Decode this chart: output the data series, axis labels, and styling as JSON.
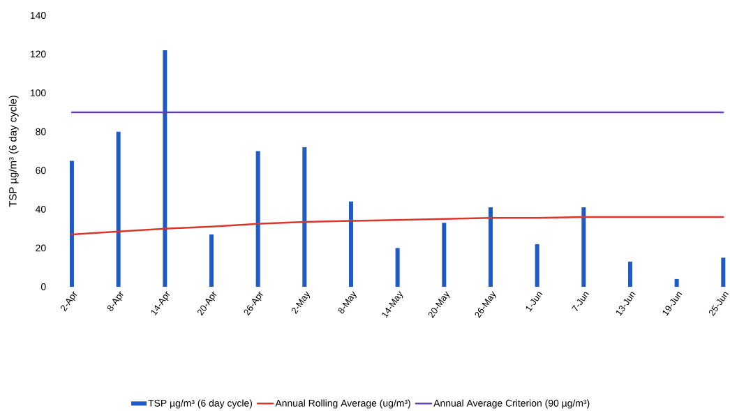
{
  "chart_data": {
    "type": "bar",
    "ylabel": "TSP µg/m³ (6 day cycle)",
    "categories": [
      "2-Apr",
      "8-Apr",
      "14-Apr",
      "20-Apr",
      "26-Apr",
      "2-May",
      "8-May",
      "14-May",
      "20-May",
      "26-May",
      "1-Jun",
      "7-Jun",
      "13-Jun",
      "19-Jun",
      "25-Jun"
    ],
    "series": [
      {
        "name": "TSP µg/m³ (6 day cycle)",
        "type": "bar",
        "color": "#1f5bc6",
        "values": [
          65,
          80,
          122,
          27,
          70,
          72,
          44,
          20,
          33,
          41,
          22,
          41,
          13,
          4,
          15
        ]
      },
      {
        "name": "Annual Rolling Average (ug/m³)",
        "type": "line",
        "color": "#d8372a",
        "values": [
          27,
          28.5,
          30,
          31,
          32.5,
          33.5,
          34,
          34.5,
          35,
          35.5,
          35.5,
          36,
          36,
          36,
          36
        ]
      },
      {
        "name": "Annual Average Criterion (90 µg/m³)",
        "type": "line",
        "color": "#6243b0",
        "values": [
          90,
          90,
          90,
          90,
          90,
          90,
          90,
          90,
          90,
          90,
          90,
          90,
          90,
          90,
          90
        ]
      }
    ],
    "ylim": [
      0,
      140
    ],
    "yticks": [
      0,
      20,
      40,
      60,
      80,
      100,
      120,
      140
    ],
    "grid": false,
    "legend": "bottom"
  }
}
